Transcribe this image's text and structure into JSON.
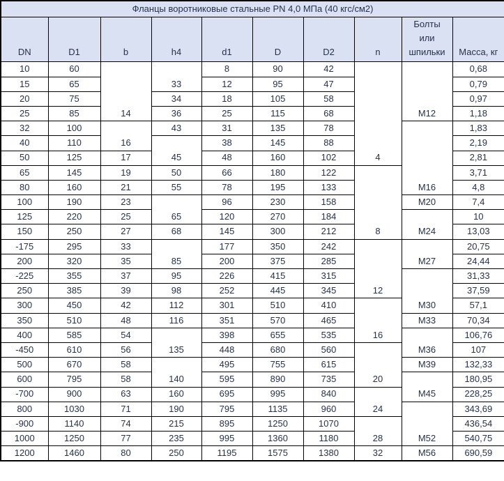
{
  "title": "Фланцы воротниковые стальные PN 4,0 МПа (40 кгс/см2)",
  "colors": {
    "header_bg": "#d9e1f2",
    "grid": "#000000",
    "text": "#26314d",
    "row_bg": "#ffffff"
  },
  "table": {
    "headers": [
      "DN",
      "D1",
      "b",
      "h4",
      "d1",
      "D",
      "D2",
      "n",
      "Болты\nили\nшпильки",
      "Масса, кг"
    ],
    "rows": [
      [
        "10",
        "60",
        {
          "v": "14",
          "rs": 4
        },
        {
          "v": "33",
          "rs": 2
        },
        "8",
        "90",
        "42",
        {
          "v": "4",
          "rs": 7
        },
        {
          "v": "М12",
          "rs": 4
        },
        "0,68"
      ],
      [
        "15",
        "65",
        "12",
        "95",
        "47",
        "0,79"
      ],
      [
        "20",
        "75",
        "34",
        "18",
        "105",
        "58",
        "0,97"
      ],
      [
        "25",
        "85",
        "36",
        "25",
        "115",
        "68",
        "1,18"
      ],
      [
        "32",
        "100",
        {
          "v": "16",
          "rs": 2
        },
        "43",
        "31",
        "135",
        "78",
        {
          "v": "М16",
          "rs": 5
        },
        "1,83"
      ],
      [
        "40",
        "110",
        {
          "v": "45",
          "rs": 2
        },
        "38",
        "145",
        "88",
        "2,19"
      ],
      [
        "50",
        "125",
        "17",
        "48",
        "160",
        "102",
        "2,81"
      ],
      [
        "65",
        "145",
        "19",
        "50",
        "66",
        "180",
        "122",
        {
          "v": "8",
          "rs": 5
        },
        "3,71"
      ],
      [
        "80",
        "160",
        "21",
        "55",
        "78",
        "195",
        "133",
        "4,8"
      ],
      [
        "100",
        "190",
        "23",
        {
          "v": "65",
          "rs": 2
        },
        "96",
        "230",
        "158",
        "М20",
        "7,4"
      ],
      [
        "125",
        "220",
        "25",
        "120",
        "270",
        "184",
        {
          "v": "М24",
          "rs": 2
        },
        "10"
      ],
      [
        "150",
        "250",
        "27",
        "68",
        "145",
        "300",
        "212",
        "13,03"
      ],
      [
        "-175",
        "295",
        "33",
        {
          "v": "85",
          "rs": 2
        },
        "177",
        "350",
        "242",
        {
          "v": "12",
          "rs": 4
        },
        {
          "v": "М27",
          "rs": 2
        },
        "20,75"
      ],
      [
        "200",
        "320",
        "35",
        "200",
        "375",
        "285",
        "24,44"
      ],
      [
        "-225",
        "355",
        "37",
        "95",
        "226",
        "415",
        "315",
        {
          "v": "М30",
          "rs": 3
        },
        "31,33"
      ],
      [
        "250",
        "385",
        "39",
        "98",
        "252",
        "445",
        "345",
        "37,59"
      ],
      [
        "300",
        "450",
        "42",
        "112",
        "301",
        "510",
        "410",
        {
          "v": "16",
          "rs": 3
        },
        "57,1"
      ],
      [
        "350",
        "510",
        "48",
        "116",
        "351",
        "570",
        "465",
        "М33",
        "70,34"
      ],
      [
        "400",
        "585",
        "54",
        {
          "v": "135",
          "rs": 2
        },
        "398",
        "655",
        "535",
        {
          "v": "М36",
          "rs": 2
        },
        "106,76"
      ],
      [
        "-450",
        "610",
        "56",
        "448",
        "680",
        "560",
        {
          "v": "20",
          "rs": 3
        },
        "107"
      ],
      [
        "500",
        "670",
        "58",
        {
          "v": "140",
          "rs": 2
        },
        "495",
        "755",
        "615",
        "М39",
        "132,33"
      ],
      [
        "600",
        "795",
        "58",
        "595",
        "890",
        "735",
        {
          "v": "М45",
          "rs": 2
        },
        "180,95"
      ],
      [
        "-700",
        "900",
        "63",
        "160",
        "695",
        "995",
        "840",
        {
          "v": "24",
          "rs": 2
        },
        "228,25"
      ],
      [
        "800",
        "1030",
        "71",
        "190",
        "795",
        "1135",
        "960",
        {
          "v": "М52",
          "rs": 3
        },
        "343,69"
      ],
      [
        "-900",
        "1140",
        "74",
        "215",
        "895",
        "1250",
        "1070",
        {
          "v": "28",
          "rs": 2
        },
        "436,54"
      ],
      [
        "1000",
        "1250",
        "77",
        "235",
        "995",
        "1360",
        "1180",
        "540,75"
      ],
      [
        "1200",
        "1460",
        "80",
        "250",
        "1195",
        "1575",
        "1380",
        "32",
        "М56",
        "690,59"
      ]
    ]
  }
}
